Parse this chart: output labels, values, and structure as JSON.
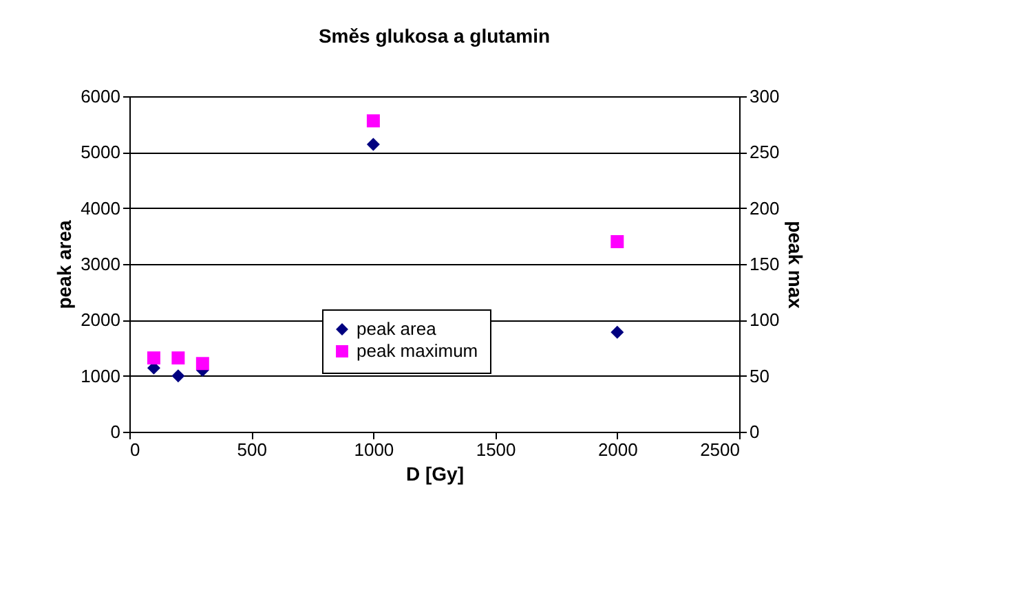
{
  "chart_data": {
    "type": "scatter",
    "title": "Směs glukosa a glutamin",
    "xlabel": "D [Gy]",
    "ylabel": "peak area",
    "y2label": "peak max",
    "x": [
      100,
      200,
      300,
      1000,
      2000
    ],
    "series": [
      {
        "name": "peak area",
        "color": "#000080",
        "marker": "diamond",
        "values": [
          1140,
          1000,
          1100,
          5140,
          1780
        ]
      },
      {
        "name": "peak maximum",
        "color": "#ff00ff",
        "marker": "square",
        "axis": "y2",
        "values": [
          66,
          66,
          61,
          278,
          170
        ]
      }
    ],
    "xlim": [
      0,
      2500
    ],
    "xticks": [
      0,
      500,
      1000,
      1500,
      2000,
      2500
    ],
    "ylim": [
      0,
      6000
    ],
    "yticks": [
      0,
      1000,
      2000,
      3000,
      4000,
      5000,
      6000
    ],
    "y2lim": [
      0,
      300
    ],
    "y2ticks": [
      0,
      50,
      100,
      150,
      200,
      250,
      300
    ],
    "grid": "y",
    "legend": "bottom"
  }
}
